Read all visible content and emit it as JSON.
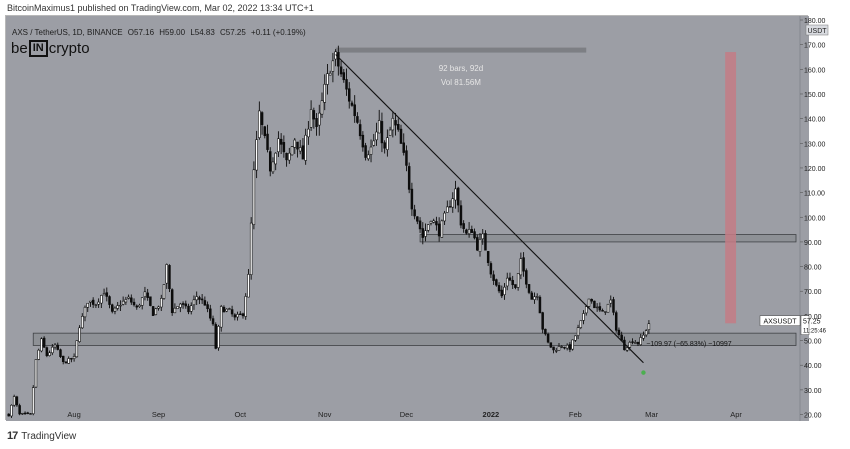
{
  "publisher_line": "BitcoinMaximus1 published on TradingView.com, Mar 02, 2022 13:34 UTC+1",
  "symbol_header": {
    "pair": "AXS / TetherUS, 1D, BINANCE",
    "open": "O57.16",
    "high": "H59.00",
    "low": "L54.83",
    "close": "C57.25",
    "change": "+0.11 (+0.19%)"
  },
  "brand": {
    "prefix": "be",
    "box": "IN",
    "suffix": "crypto"
  },
  "footer": {
    "label": "TradingView",
    "icon": "tradingview-logo-icon"
  },
  "annotations": {
    "range_bars": "92 bars, 92d",
    "range_vol": "Vol 81.56M",
    "measure_label": "−109.97 (−65.83%) −10997",
    "price_tag_symbol": "AXSUSDT",
    "price_tag_value": "57.25",
    "price_tag_countdown": "11:25:46"
  },
  "colors": {
    "background": "#9c9ea5",
    "candle": "#0d0d0d",
    "zone_fill": "#8e9196",
    "zone_border": "#3f4145",
    "red_box": "#c47b85",
    "green_marker": "#4caf50",
    "text_light": "#e6e6e6",
    "axis_text": "#222222"
  },
  "chart_data": {
    "type": "candlestick",
    "symbol": "AXS / TetherUS",
    "timeframe": "1D",
    "exchange": "BINANCE",
    "currency_label": "USDT",
    "y_range": [
      19,
      180
    ],
    "y_ticks": [
      20,
      30,
      40,
      50,
      60,
      70,
      80,
      90,
      100,
      110,
      120,
      130,
      140,
      150,
      160,
      170,
      180
    ],
    "x_ticks": [
      {
        "label": "Aug",
        "day": 24
      },
      {
        "label": "Sep",
        "day": 55
      },
      {
        "label": "Oct",
        "day": 85
      },
      {
        "label": "Nov",
        "day": 116
      },
      {
        "label": "Dec",
        "day": 146
      },
      {
        "label": "2022",
        "day": 177
      },
      {
        "label": "Feb",
        "day": 208
      },
      {
        "label": "Mar",
        "day": 236
      },
      {
        "label": "Apr",
        "day": 267
      }
    ],
    "x_range": [
      -1,
      289
    ],
    "anchors": [
      [
        0,
        20
      ],
      [
        2,
        27
      ],
      [
        4,
        20
      ],
      [
        8,
        20
      ],
      [
        10,
        42
      ],
      [
        12,
        50
      ],
      [
        14,
        44
      ],
      [
        17,
        48
      ],
      [
        20,
        41
      ],
      [
        24,
        43
      ],
      [
        26,
        56
      ],
      [
        29,
        66
      ],
      [
        32,
        65
      ],
      [
        35,
        70
      ],
      [
        38,
        61
      ],
      [
        41,
        65
      ],
      [
        44,
        67
      ],
      [
        47,
        63
      ],
      [
        50,
        69
      ],
      [
        53,
        61
      ],
      [
        56,
        66
      ],
      [
        58,
        80
      ],
      [
        60,
        62
      ],
      [
        63,
        65
      ],
      [
        66,
        62
      ],
      [
        69,
        68
      ],
      [
        72,
        65
      ],
      [
        75,
        56
      ],
      [
        76,
        47
      ],
      [
        78,
        63
      ],
      [
        81,
        62
      ],
      [
        83,
        59
      ],
      [
        86,
        61
      ],
      [
        88,
        76
      ],
      [
        90,
        118
      ],
      [
        92,
        142
      ],
      [
        94,
        131
      ],
      [
        96,
        120
      ],
      [
        99,
        132
      ],
      [
        102,
        122
      ],
      [
        105,
        132
      ],
      [
        108,
        124
      ],
      [
        111,
        145
      ],
      [
        113,
        135
      ],
      [
        116,
        152
      ],
      [
        118,
        161
      ],
      [
        120,
        165
      ],
      [
        122,
        158
      ],
      [
        125,
        148
      ],
      [
        128,
        139
      ],
      [
        131,
        126
      ],
      [
        133,
        128
      ],
      [
        136,
        137
      ],
      [
        138,
        127
      ],
      [
        141,
        139
      ],
      [
        143,
        134
      ],
      [
        146,
        120
      ],
      [
        148,
        105
      ],
      [
        150,
        99
      ],
      [
        152,
        92
      ],
      [
        155,
        100
      ],
      [
        158,
        94
      ],
      [
        161,
        103
      ],
      [
        164,
        111
      ],
      [
        166,
        98
      ],
      [
        168,
        93
      ],
      [
        170,
        95
      ],
      [
        172,
        88
      ],
      [
        174,
        92
      ],
      [
        177,
        78
      ],
      [
        179,
        72
      ],
      [
        181,
        68
      ],
      [
        183,
        76
      ],
      [
        186,
        71
      ],
      [
        188,
        82
      ],
      [
        190,
        74
      ],
      [
        192,
        67
      ],
      [
        194,
        69
      ],
      [
        196,
        55
      ],
      [
        198,
        49
      ],
      [
        200,
        46
      ],
      [
        203,
        48
      ],
      [
        206,
        47
      ],
      [
        208,
        52
      ],
      [
        211,
        60
      ],
      [
        213,
        68
      ],
      [
        215,
        64
      ],
      [
        218,
        61
      ],
      [
        221,
        66
      ],
      [
        223,
        55
      ],
      [
        226,
        47
      ],
      [
        229,
        50
      ],
      [
        231,
        49
      ],
      [
        233,
        52
      ],
      [
        235,
        57
      ]
    ],
    "horizontal_zones": [
      {
        "from_day": 9,
        "to_day": 289,
        "low": 48,
        "high": 53
      },
      {
        "from_day": 151,
        "to_day": 289,
        "low": 90,
        "high": 93
      }
    ],
    "range_measure": {
      "from_day": 120,
      "to_day": 212,
      "price": 168
    },
    "trendline": {
      "from": [
        120,
        166
      ],
      "to": [
        233,
        41
      ]
    },
    "red_box": {
      "from_day": 263,
      "to_day": 267,
      "low": 57,
      "high": 167
    },
    "green_marker": {
      "day": 233,
      "price": 37
    }
  }
}
